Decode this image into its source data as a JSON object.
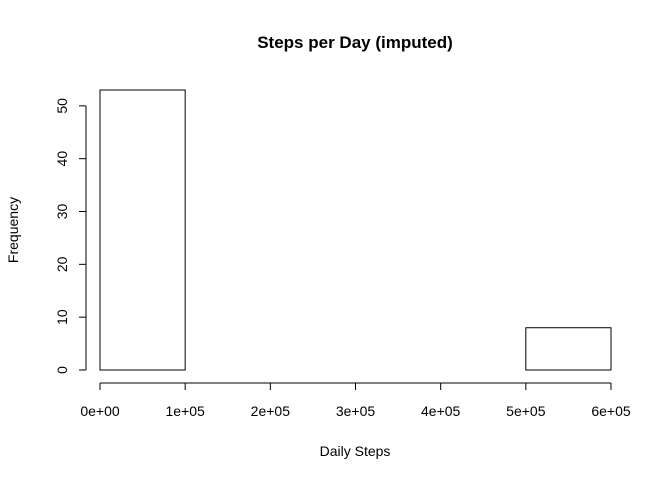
{
  "chart_data": {
    "type": "histogram",
    "title": "Steps per Day (imputed)",
    "xlabel": "Daily Steps",
    "ylabel": "Frequency",
    "bins": [
      {
        "from": 0,
        "to": 100000,
        "count": 53
      },
      {
        "from": 100000,
        "to": 200000,
        "count": 0
      },
      {
        "from": 200000,
        "to": 300000,
        "count": 0
      },
      {
        "from": 300000,
        "to": 400000,
        "count": 0
      },
      {
        "from": 400000,
        "to": 500000,
        "count": 0
      },
      {
        "from": 500000,
        "to": 600000,
        "count": 8
      }
    ],
    "xlim": [
      0,
      600000
    ],
    "ylim": [
      0,
      53
    ],
    "x_ticks": [
      {
        "value": 0,
        "label": "0e+00"
      },
      {
        "value": 100000,
        "label": "1e+05"
      },
      {
        "value": 200000,
        "label": "2e+05"
      },
      {
        "value": 300000,
        "label": "3e+05"
      },
      {
        "value": 400000,
        "label": "4e+05"
      },
      {
        "value": 500000,
        "label": "5e+05"
      },
      {
        "value": 600000,
        "label": "6e+05"
      }
    ],
    "y_ticks": [
      {
        "value": 0,
        "label": "0"
      },
      {
        "value": 10,
        "label": "10"
      },
      {
        "value": 20,
        "label": "20"
      },
      {
        "value": 30,
        "label": "30"
      },
      {
        "value": 40,
        "label": "40"
      },
      {
        "value": 50,
        "label": "50"
      }
    ],
    "grid": false,
    "bar_fill": "#ffffff",
    "bar_stroke": "#000000"
  }
}
